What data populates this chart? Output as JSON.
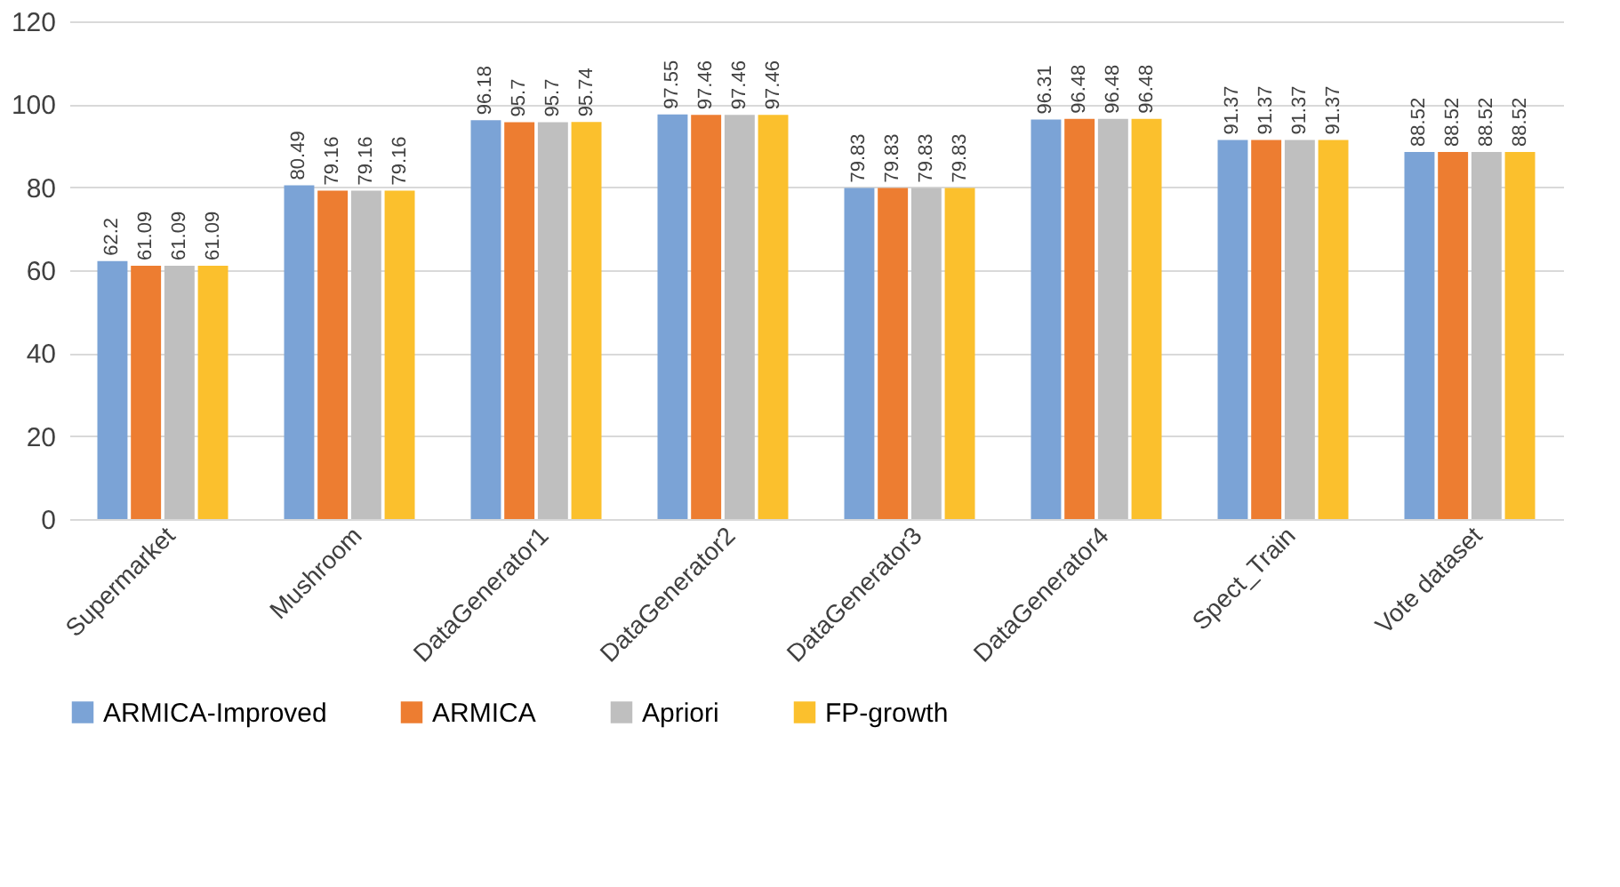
{
  "chart_data": {
    "type": "bar",
    "categories": [
      "Supermarket",
      "Mushroom",
      "DataGenerator1",
      "DataGenerator2",
      "DataGenerator3",
      "DataGenerator4",
      "Spect_Train",
      "Vote dataset"
    ],
    "series": [
      {
        "name": "ARMICA-Improved",
        "color": "#7ba3d6",
        "values": [
          62.2,
          80.49,
          96.18,
          97.55,
          79.83,
          96.31,
          91.37,
          88.52
        ]
      },
      {
        "name": "ARMICA",
        "color": "#ed7d31",
        "values": [
          61.09,
          79.16,
          95.7,
          97.46,
          79.83,
          96.48,
          91.37,
          88.52
        ]
      },
      {
        "name": "Apriori",
        "color": "#bfbfbf",
        "values": [
          61.09,
          79.16,
          95.7,
          97.46,
          79.83,
          96.48,
          91.37,
          88.52
        ]
      },
      {
        "name": "FP-growth",
        "color": "#fbc02d",
        "values": [
          61.09,
          79.16,
          95.74,
          97.46,
          79.83,
          96.48,
          91.37,
          88.52
        ]
      }
    ],
    "ylim": [
      0,
      120
    ],
    "yticks": [
      0,
      20,
      40,
      60,
      80,
      100,
      120
    ],
    "grid": "y",
    "legend": "bottom",
    "data_labels": true
  }
}
